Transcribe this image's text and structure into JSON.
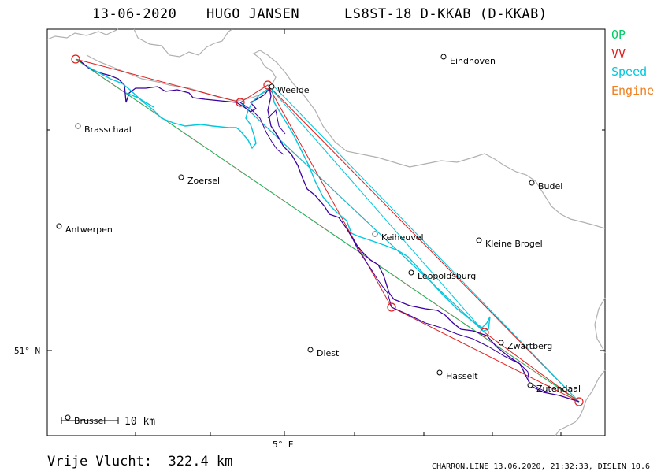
{
  "header": {
    "date": "13-06-2020",
    "pilot": "HUGO JANSEN",
    "glider": "LS8ST-18 D-KKAB (D-KKAB)"
  },
  "legend": [
    {
      "label": "OP",
      "color": "#00cc66"
    },
    {
      "label": "VV",
      "color": "#e02020"
    },
    {
      "label": "Speed",
      "color": "#00c8e0"
    },
    {
      "label": "Engine",
      "color": "#f08020"
    }
  ],
  "map": {
    "axis_labels": {
      "latitude": "51° N",
      "longitude": "5° E"
    },
    "scale_bar": "10 km",
    "places": [
      {
        "name": "Eindhoven"
      },
      {
        "name": "Weelde"
      },
      {
        "name": "Brasschaat"
      },
      {
        "name": "Zoersel"
      },
      {
        "name": "Budel"
      },
      {
        "name": "Antwerpen"
      },
      {
        "name": "Keiheuvel"
      },
      {
        "name": "Kleine Brogel"
      },
      {
        "name": "Leopoldsburg"
      },
      {
        "name": "Zwartberg"
      },
      {
        "name": "Diest"
      },
      {
        "name": "Hasselt"
      },
      {
        "name": "Zutendaal"
      },
      {
        "name": "Brussel"
      }
    ]
  },
  "footer": {
    "distance": "Vrije Vlucht:  322.4 km",
    "software": "CHARRON.LINE 13.06.2020, 21:32:33, DISLIN 10.6"
  }
}
